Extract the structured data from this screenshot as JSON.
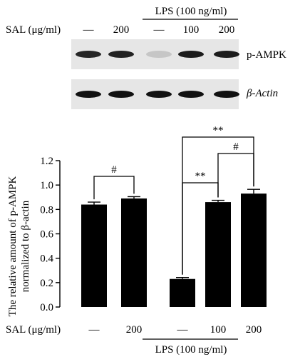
{
  "blot": {
    "header": {
      "sal_label": "SAL (μg/ml)",
      "lps_label": "LPS (100 ng/ml)",
      "lane_doses": [
        "—",
        "200",
        "—",
        "100",
        "200"
      ]
    },
    "bands": [
      {
        "name": "p-AMPK",
        "lane_intensity": [
          0.9,
          0.92,
          0.15,
          0.95,
          0.95
        ]
      },
      {
        "name": "β-Actin",
        "lane_intensity": [
          1,
          1,
          1,
          1,
          1
        ]
      }
    ]
  },
  "chart_data": {
    "type": "bar",
    "ylabel_line1": "The relative amount of p-AMPK",
    "ylabel_line2": "normalized to β-actin",
    "ylim": [
      0,
      1.2
    ],
    "yticks": [
      "0.0",
      "0.2",
      "0.4",
      "0.6",
      "0.8",
      "1.0",
      "1.2"
    ],
    "categories": [
      "—",
      "200",
      "—",
      "100",
      "200"
    ],
    "values": [
      0.84,
      0.89,
      0.23,
      0.86,
      0.93
    ],
    "errors": [
      0.02,
      0.015,
      0.012,
      0.015,
      0.035
    ],
    "bar_color": "#000000",
    "x_sal_label": "SAL (μg/ml)",
    "x_lps_label": "LPS (100 ng/ml)",
    "significance": [
      {
        "from": 0,
        "to": 1,
        "label": "#"
      },
      {
        "from": 2,
        "to": 3,
        "label": "**"
      },
      {
        "from": 3,
        "to": 4,
        "label": "#"
      },
      {
        "from": 2,
        "to": 4,
        "label": "**"
      }
    ]
  }
}
